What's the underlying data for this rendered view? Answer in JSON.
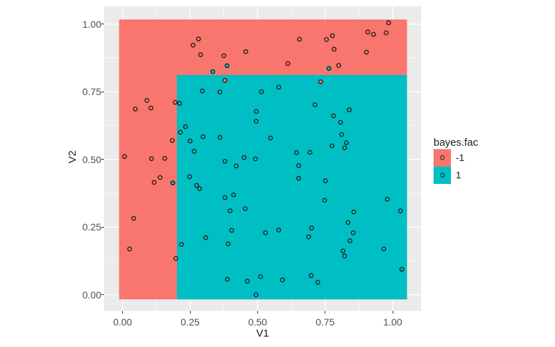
{
  "figure": {
    "background": "#FFFFFF",
    "panel_background": "#EBEBEB",
    "grid_color": "#FFFFFF",
    "axis_text_color": "#4D4D4D",
    "tick_mark_color": "#333333"
  },
  "chart_data": {
    "type": "scatter",
    "xlabel": "V1",
    "ylabel": "V2",
    "xlim": [
      -0.069,
      1.105
    ],
    "ylim": [
      -0.06,
      1.066
    ],
    "grid": "on",
    "x_ticks": {
      "labels": [
        "0.00",
        "0.25",
        "0.50",
        "0.75",
        "1.00"
      ],
      "values": [
        0,
        0.25,
        0.5,
        0.75,
        1.0
      ]
    },
    "y_ticks": {
      "labels": [
        "0.00",
        "0.25",
        "0.50",
        "0.75",
        "1.00"
      ],
      "values": [
        0,
        0.25,
        0.5,
        0.75,
        1.0
      ]
    },
    "minor_breaks": [
      0.125,
      0.375,
      0.625,
      0.875
    ],
    "class_colors": {
      "-1": "#F8766D",
      "1": "#00BFC4"
    },
    "point_outline": "#1A1A1A",
    "regions": [
      {
        "class": "-1",
        "x": [
          -0.013,
          1.053
        ],
        "y": [
          -0.017,
          1.017
        ]
      },
      {
        "class": "1",
        "x": [
          0.201,
          1.053
        ],
        "y": [
          -0.017,
          0.812
        ]
      }
    ],
    "decision_boundary": {
      "x_min": 0.2,
      "y_max": 0.81
    },
    "legend": {
      "title": "bayes.fac",
      "position": "right",
      "entries": [
        {
          "label": "-1",
          "class": "-1"
        },
        {
          "label": "1",
          "class": "1"
        }
      ]
    },
    "points": [
      [
        0.281,
        0.945,
        ""
      ],
      [
        0.261,
        0.922,
        ""
      ],
      [
        0.289,
        0.887,
        ""
      ],
      [
        0.334,
        0.824,
        "1"
      ],
      [
        0.295,
        0.753,
        ""
      ],
      [
        0.09,
        0.718,
        ""
      ],
      [
        0.195,
        0.711,
        ""
      ],
      [
        0.211,
        0.707,
        ""
      ],
      [
        0.047,
        0.686,
        ""
      ],
      [
        0.105,
        0.69,
        ""
      ],
      [
        0.655,
        0.944,
        ""
      ],
      [
        0.456,
        0.898,
        ""
      ],
      [
        0.375,
        0.883,
        ""
      ],
      [
        0.387,
        0.846,
        "1"
      ],
      [
        0.612,
        0.854,
        ""
      ],
      [
        0.379,
        0.792,
        "-1"
      ],
      [
        0.36,
        0.749,
        ""
      ],
      [
        0.514,
        0.75,
        ""
      ],
      [
        0.578,
        0.767,
        ""
      ],
      [
        0.712,
        0.702,
        ""
      ],
      [
        0.495,
        0.677,
        ""
      ],
      [
        0.985,
        1.005,
        ""
      ],
      [
        0.908,
        0.971,
        ""
      ],
      [
        0.929,
        0.962,
        ""
      ],
      [
        0.976,
        0.968,
        ""
      ],
      [
        0.755,
        0.943,
        ""
      ],
      [
        0.777,
        0.957,
        ""
      ],
      [
        0.783,
        0.907,
        ""
      ],
      [
        0.903,
        0.896,
        ""
      ],
      [
        0.8,
        0.847,
        ""
      ],
      [
        0.764,
        0.836,
        "1"
      ],
      [
        0.733,
        0.787,
        "-1"
      ],
      [
        0.839,
        0.683,
        ""
      ],
      [
        0.233,
        0.621,
        ""
      ],
      [
        0.214,
        0.6,
        ""
      ],
      [
        0.184,
        0.57,
        ""
      ],
      [
        0.25,
        0.568,
        ""
      ],
      [
        0.298,
        0.584,
        ""
      ],
      [
        0.265,
        0.53,
        ""
      ],
      [
        0.007,
        0.511,
        ""
      ],
      [
        0.107,
        0.503,
        ""
      ],
      [
        0.156,
        0.504,
        ""
      ],
      [
        0.139,
        0.433,
        ""
      ],
      [
        0.117,
        0.415,
        ""
      ],
      [
        0.186,
        0.413,
        "1"
      ],
      [
        0.248,
        0.436,
        ""
      ],
      [
        0.274,
        0.404,
        ""
      ],
      [
        0.285,
        0.392,
        ""
      ],
      [
        0.495,
        0.641,
        ""
      ],
      [
        0.361,
        0.581,
        ""
      ],
      [
        0.548,
        0.579,
        ""
      ],
      [
        0.45,
        0.507,
        ""
      ],
      [
        0.492,
        0.502,
        ""
      ],
      [
        0.379,
        0.493,
        ""
      ],
      [
        0.421,
        0.476,
        ""
      ],
      [
        0.644,
        0.525,
        ""
      ],
      [
        0.694,
        0.526,
        ""
      ],
      [
        0.652,
        0.477,
        ""
      ],
      [
        0.652,
        0.43,
        ""
      ],
      [
        0.379,
        0.359,
        ""
      ],
      [
        0.411,
        0.369,
        ""
      ],
      [
        0.398,
        0.31,
        ""
      ],
      [
        0.454,
        0.318,
        ""
      ],
      [
        0.781,
        0.661,
        ""
      ],
      [
        0.807,
        0.637,
        ""
      ],
      [
        0.811,
        0.592,
        ""
      ],
      [
        0.775,
        0.55,
        ""
      ],
      [
        0.829,
        0.562,
        ""
      ],
      [
        0.822,
        0.543,
        ""
      ],
      [
        0.751,
        0.421,
        ""
      ],
      [
        0.748,
        0.349,
        ""
      ],
      [
        0.98,
        0.353,
        ""
      ],
      [
        0.856,
        0.306,
        ""
      ],
      [
        1.029,
        0.31,
        ""
      ],
      [
        0.041,
        0.282,
        ""
      ],
      [
        0.026,
        0.169,
        ""
      ],
      [
        0.197,
        0.134,
        ""
      ],
      [
        0.218,
        0.186,
        ""
      ],
      [
        0.308,
        0.211,
        ""
      ],
      [
        0.404,
        0.238,
        ""
      ],
      [
        0.391,
        0.188,
        ""
      ],
      [
        0.529,
        0.229,
        ""
      ],
      [
        0.578,
        0.239,
        ""
      ],
      [
        0.7,
        0.246,
        ""
      ],
      [
        0.689,
        0.214,
        ""
      ],
      [
        0.388,
        0.057,
        ""
      ],
      [
        0.462,
        0.05,
        ""
      ],
      [
        0.511,
        0.067,
        ""
      ],
      [
        0.592,
        0.055,
        ""
      ],
      [
        0.698,
        0.071,
        ""
      ],
      [
        0.723,
        0.046,
        ""
      ],
      [
        0.494,
        0.0,
        ""
      ],
      [
        0.835,
        0.267,
        ""
      ],
      [
        0.854,
        0.229,
        ""
      ],
      [
        0.842,
        0.199,
        ""
      ],
      [
        0.816,
        0.162,
        ""
      ],
      [
        0.822,
        0.143,
        ""
      ],
      [
        0.967,
        0.169,
        ""
      ],
      [
        1.034,
        0.094,
        ""
      ]
    ]
  }
}
